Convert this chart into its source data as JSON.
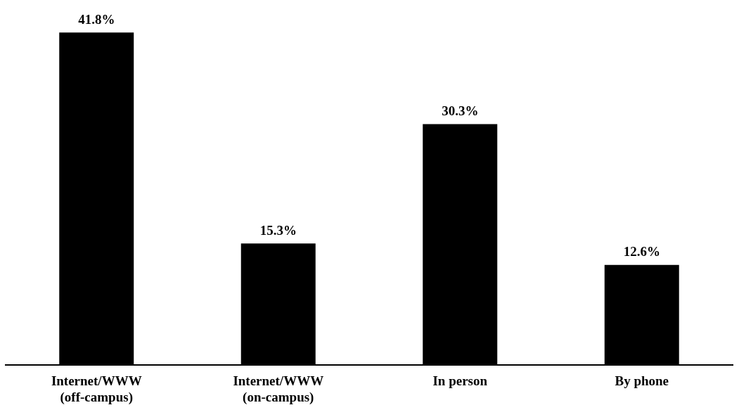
{
  "chart_data": {
    "type": "bar",
    "categories": [
      "Internet/WWW\n(off-campus)",
      "Internet/WWW\n(on-campus)",
      "In person",
      "By phone"
    ],
    "values": [
      41.8,
      15.3,
      30.3,
      12.6
    ],
    "value_labels": [
      "41.8%",
      "15.3%",
      "30.3%",
      "12.6%"
    ],
    "color": "#000000",
    "grid": false,
    "legend": false
  }
}
